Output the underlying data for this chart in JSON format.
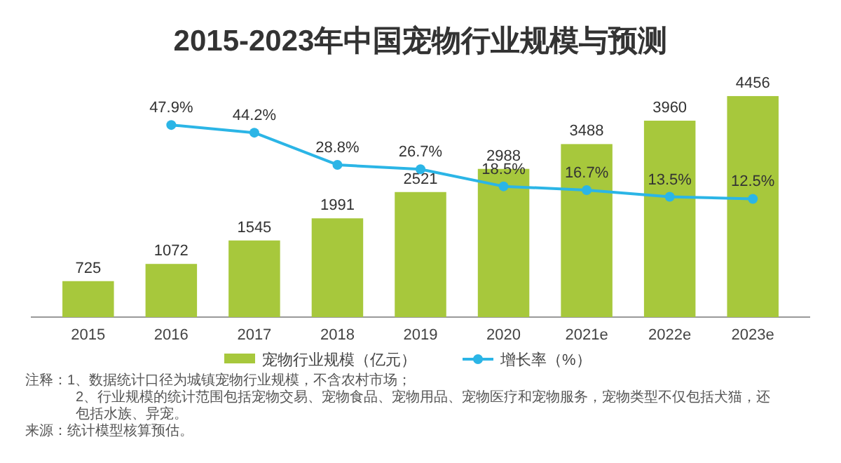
{
  "chart_data": {
    "type": "bar",
    "title": "2015-2023年中国宠物行业规模与预测",
    "categories": [
      "2015",
      "2016",
      "2017",
      "2018",
      "2019",
      "2020",
      "2021e",
      "2022e",
      "2023e"
    ],
    "series": [
      {
        "name": "宠物行业规模（亿元）",
        "color": "#a7c83c",
        "values": [
          725,
          1072,
          1545,
          1991,
          2521,
          2988,
          3488,
          3960,
          4456
        ]
      },
      {
        "name": "增长率（%）",
        "type": "line",
        "axis": "y2",
        "color": "#2bb5e6",
        "values": [
          null,
          47.9,
          44.2,
          28.8,
          26.7,
          18.5,
          16.7,
          13.5,
          12.5
        ],
        "value_labels": [
          null,
          "47.9%",
          "44.2%",
          "28.8%",
          "26.7%",
          "18.5%",
          "16.7%",
          "13.5%",
          "12.5%"
        ]
      }
    ],
    "tick_labels": "x",
    "data_labels": true,
    "legend": "bottom",
    "marker": "circle",
    "grid": false,
    "annotations": [
      "注释：1、数据统计口径为城镇宠物行业规模，不含农村市场；",
      "2、行业规模的统计范围包括宠物交易、宠物食品、宠物用品、宠物医疗和宠物服务，宠物类型不仅包括犬猫，还包括水族、异宠。",
      "来源：统计模型核算预估。"
    ]
  }
}
